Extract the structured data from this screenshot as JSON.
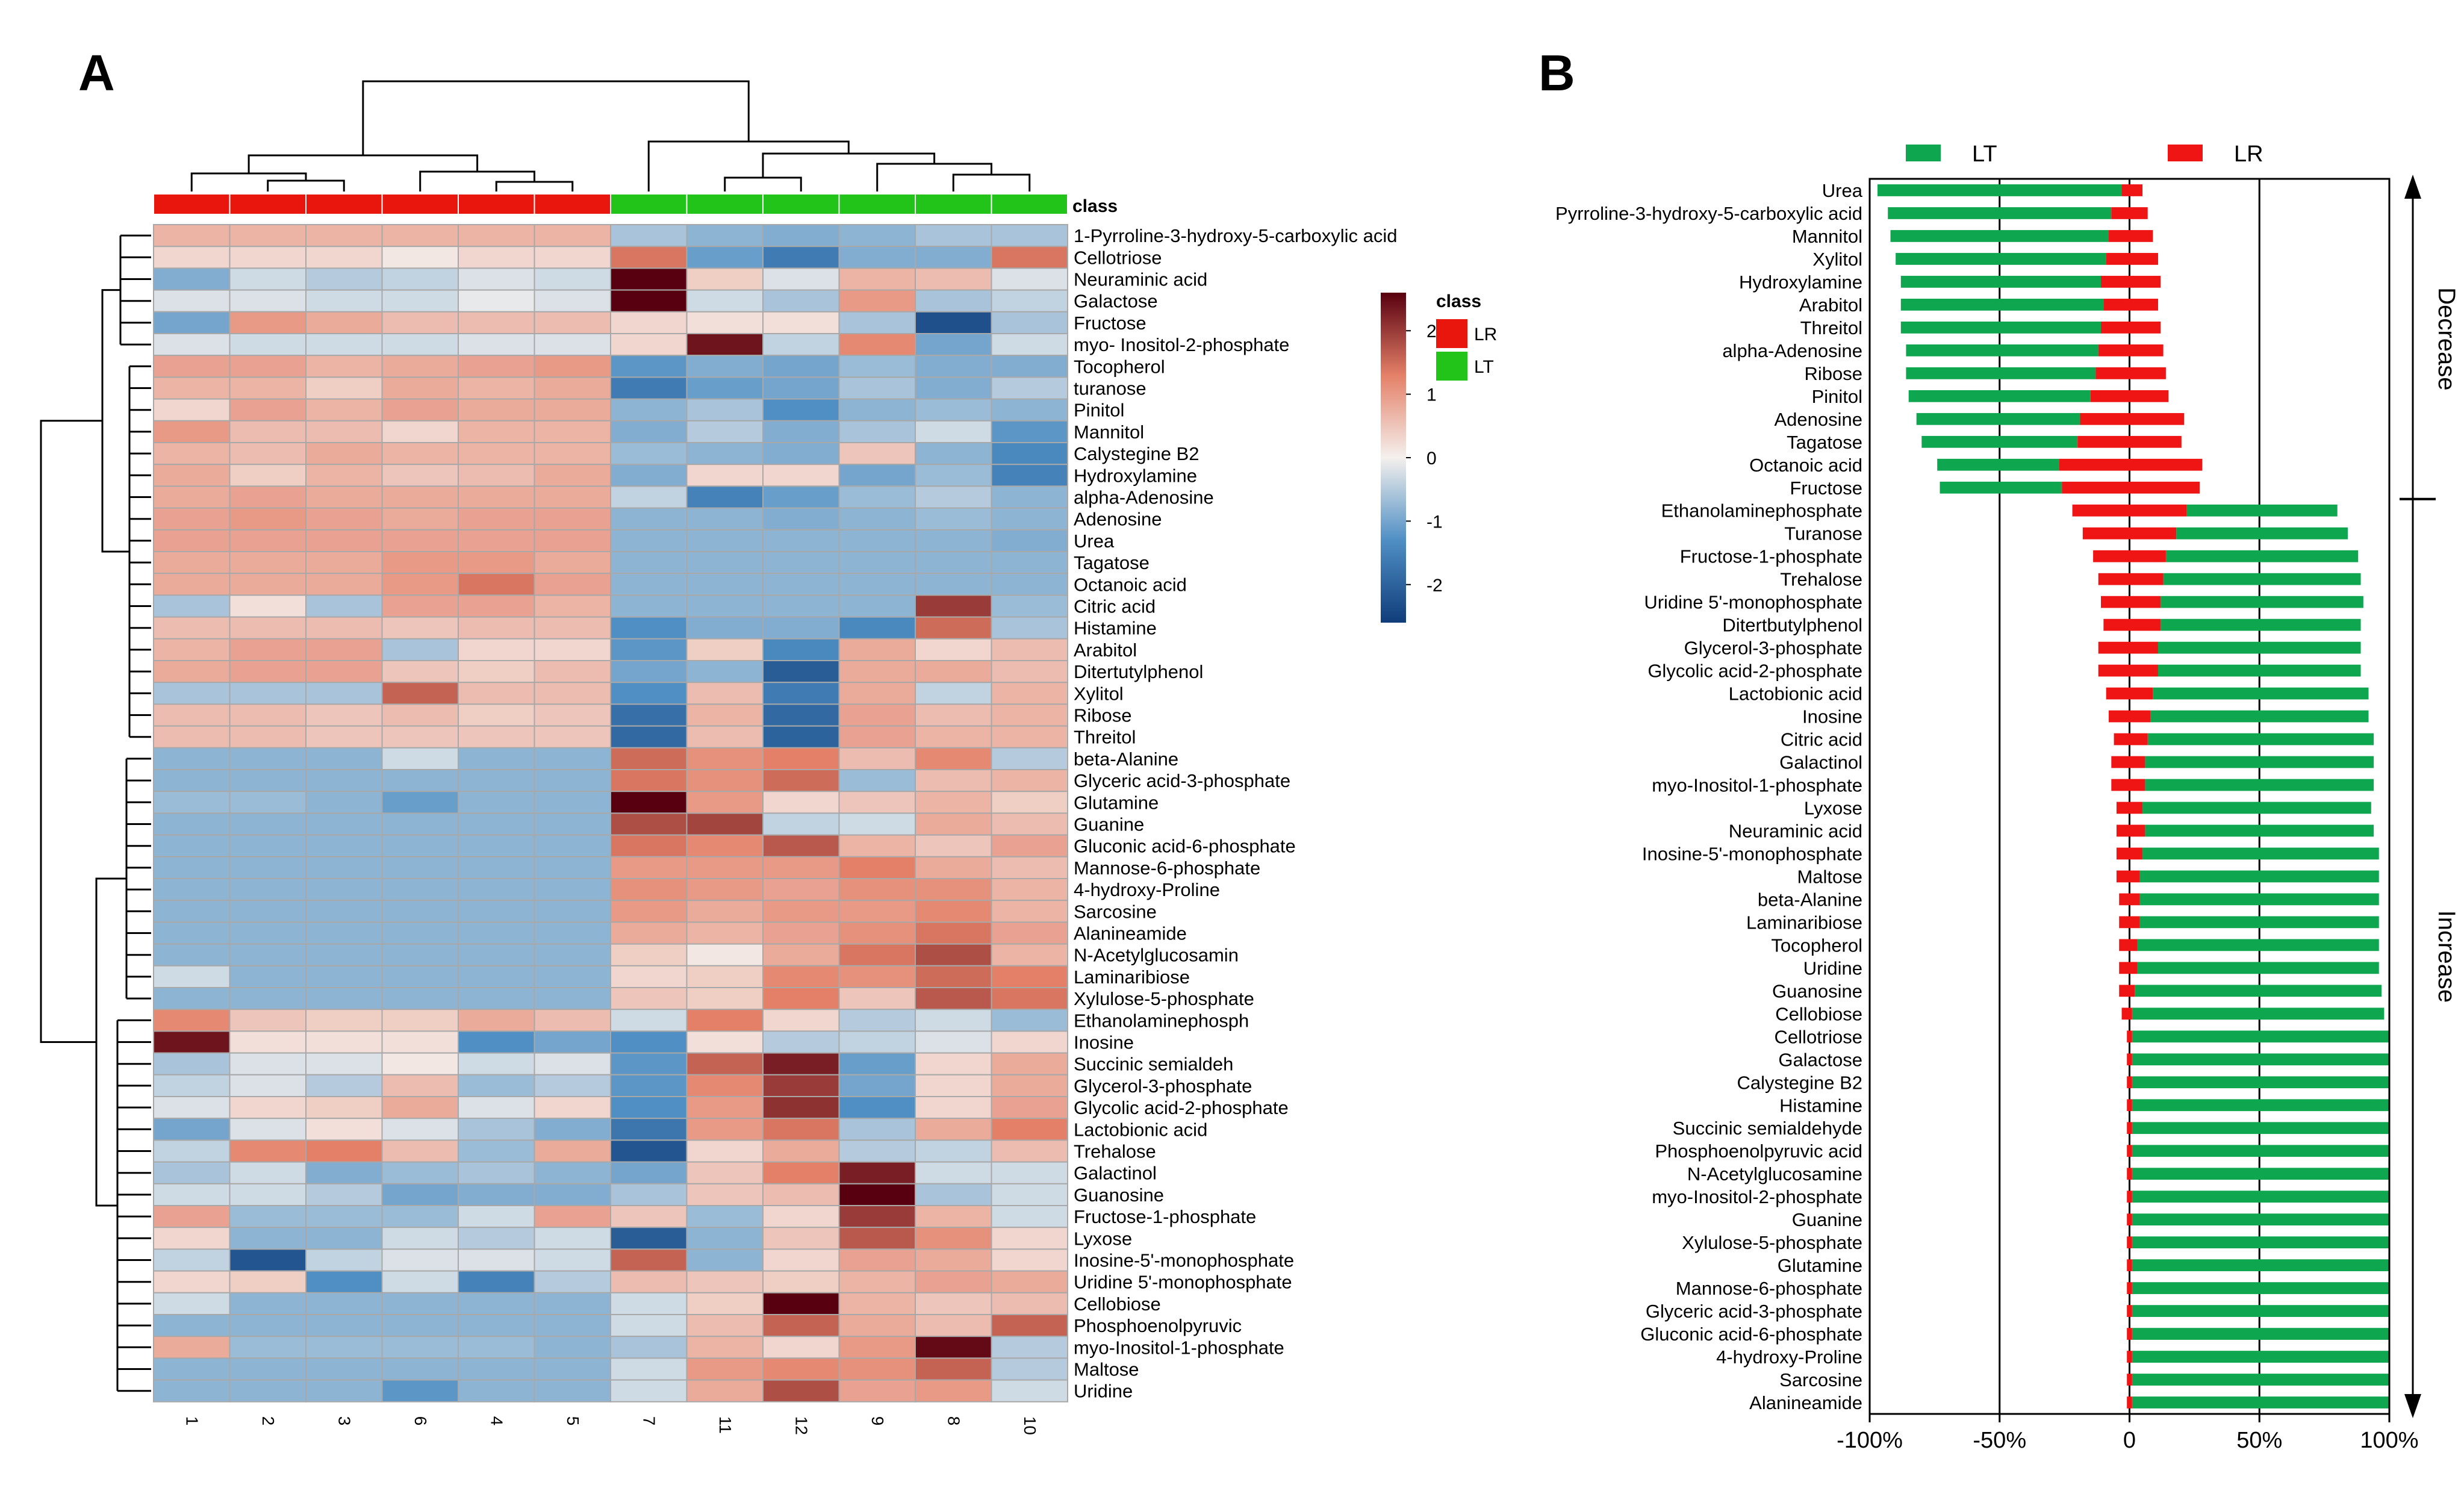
{
  "panels": {
    "a": "A",
    "b": "B"
  },
  "chart_data": [
    {
      "type": "heatmap",
      "panel": "A",
      "title": "",
      "class_label": "class",
      "samples": [
        "1",
        "2",
        "3",
        "6",
        "4",
        "5",
        "7",
        "11",
        "12",
        "9",
        "8",
        "10"
      ],
      "sample_class": [
        "LR",
        "LR",
        "LR",
        "LR",
        "LR",
        "LR",
        "LT",
        "LT",
        "LT",
        "LT",
        "LT",
        "LT"
      ],
      "legend": {
        "title": "class",
        "entries": [
          {
            "name": "LR",
            "color": "#e8160c"
          },
          {
            "name": "LT",
            "color": "#22c41a"
          }
        ]
      },
      "colorbar": {
        "ticks": [
          2,
          1,
          0,
          -1,
          -2
        ],
        "range": [
          -2.6,
          2.6
        ],
        "colors": [
          "#103d7a",
          "#4f8fc4",
          "#f4f0ed",
          "#e48068",
          "#58000f"
        ]
      },
      "metabolites": [
        "1-Pyrroline-3-hydroxy-5-carboxylic acid",
        "Cellotriose",
        "Neuraminic acid",
        "Galactose",
        "Fructose",
        "myo- Inositol-2-phosphate",
        "Tocopherol",
        "turanose",
        "Pinitol",
        "Mannitol",
        "Calystegine B2",
        "Hydroxylamine",
        "alpha-Adenosine",
        "Adenosine",
        "Urea",
        "Tagatose",
        "Octanoic acid",
        "Citric acid",
        "Histamine",
        "Arabitol",
        "Ditertutylphenol",
        "Xylitol",
        "Ribose",
        "Threitol",
        "beta-Alanine",
        "Glyceric acid-3-phosphate",
        "Glutamine",
        "Guanine",
        "Gluconic acid-6-phosphate",
        "Mannose-6-phosphate",
        "4-hydroxy-Proline",
        "Sarcosine",
        "Alanineamide",
        "N-Acetylglucosamin",
        "Laminaribiose",
        "Xylulose-5-phosphate",
        "Ethanolaminephosph",
        "Inosine",
        "Succinic semialdeh",
        "Glycerol-3-phosphate",
        "Glycolic acid-2-phosphate",
        "Lactobionic acid",
        "Trehalose",
        "Galactinol",
        "Guanosine",
        "Fructose-1-phosphate",
        "Lyxose",
        "Inosine-5'-monophosphate",
        "Uridine 5'-monophosphate",
        "Cellobiose",
        "Phosphoenolpyruvic",
        "myo-Inositol-1-phosphate",
        "Maltose",
        "Uridine"
      ],
      "values": [
        [
          0.7,
          0.7,
          0.7,
          0.7,
          0.7,
          0.7,
          -0.6,
          -0.8,
          -0.9,
          -0.8,
          -0.6,
          -0.6
        ],
        [
          0.3,
          0.3,
          0.3,
          0.1,
          0.3,
          0.3,
          1.4,
          -1.1,
          -1.6,
          -0.9,
          -0.9,
          1.4
        ],
        [
          -0.9,
          -0.3,
          -0.5,
          -0.4,
          -0.2,
          -0.3,
          2.6,
          0.4,
          -0.2,
          0.7,
          0.6,
          -0.2
        ],
        [
          -0.2,
          -0.2,
          -0.3,
          -0.3,
          -0.1,
          -0.2,
          2.7,
          -0.3,
          -0.6,
          1.0,
          -0.6,
          -0.4
        ],
        [
          -1.0,
          1.0,
          0.8,
          0.6,
          0.6,
          0.6,
          0.3,
          0.2,
          0.2,
          -0.6,
          -2.3,
          -0.6
        ],
        [
          -0.2,
          -0.3,
          -0.3,
          -0.3,
          -0.2,
          -0.2,
          0.3,
          2.4,
          -0.4,
          1.2,
          -1.0,
          -0.3
        ],
        [
          0.9,
          0.9,
          0.7,
          0.8,
          0.9,
          1.0,
          -1.2,
          -0.9,
          -1.0,
          -0.7,
          -0.9,
          -0.9
        ],
        [
          0.7,
          0.7,
          0.4,
          0.8,
          0.7,
          0.8,
          -1.6,
          -1.1,
          -1.0,
          -0.6,
          -0.9,
          -0.5
        ],
        [
          0.3,
          0.9,
          0.7,
          0.9,
          0.8,
          0.8,
          -0.8,
          -0.6,
          -1.3,
          -0.8,
          -0.7,
          -0.8
        ],
        [
          1.0,
          0.6,
          0.6,
          0.3,
          0.7,
          0.7,
          -0.9,
          -0.5,
          -0.9,
          -0.6,
          -0.3,
          -1.2
        ],
        [
          0.7,
          0.6,
          0.8,
          0.7,
          0.7,
          0.7,
          -0.7,
          -0.8,
          -0.9,
          0.5,
          -0.8,
          -1.4
        ],
        [
          0.8,
          0.4,
          0.7,
          0.5,
          0.6,
          0.8,
          -0.9,
          0.3,
          0.3,
          -1.0,
          -0.7,
          -1.5
        ],
        [
          0.8,
          0.9,
          0.8,
          0.8,
          0.8,
          0.8,
          -0.4,
          -1.5,
          -1.1,
          -0.7,
          -0.5,
          -0.8
        ],
        [
          0.9,
          1.0,
          0.9,
          0.8,
          0.9,
          0.9,
          -0.8,
          -0.8,
          -0.9,
          -0.8,
          -0.7,
          -0.8
        ],
        [
          0.9,
          0.9,
          0.9,
          0.9,
          0.9,
          0.9,
          -0.8,
          -0.8,
          -0.8,
          -0.8,
          -0.8,
          -0.9
        ],
        [
          0.8,
          0.8,
          0.8,
          1.0,
          1.0,
          0.8,
          -0.8,
          -0.8,
          -0.8,
          -0.8,
          -0.8,
          -0.8
        ],
        [
          0.8,
          0.8,
          0.8,
          1.0,
          1.4,
          0.9,
          -0.8,
          -0.8,
          -0.8,
          -0.8,
          -0.8,
          -0.8
        ],
        [
          -0.6,
          0.2,
          -0.6,
          0.9,
          0.9,
          0.7,
          -0.8,
          -0.8,
          -0.8,
          -0.8,
          2.0,
          -0.7
        ],
        [
          0.6,
          0.6,
          0.6,
          0.5,
          0.6,
          0.6,
          -1.3,
          -0.9,
          -0.9,
          -1.4,
          1.5,
          -0.6
        ],
        [
          0.7,
          0.9,
          0.9,
          -0.6,
          0.3,
          0.3,
          -1.2,
          0.4,
          -1.4,
          0.8,
          0.3,
          0.6
        ],
        [
          0.8,
          0.9,
          0.9,
          0.5,
          0.4,
          0.6,
          -1.0,
          -0.8,
          -2.1,
          0.8,
          0.8,
          0.6
        ],
        [
          -0.6,
          -0.6,
          -0.6,
          1.6,
          0.6,
          0.6,
          -1.3,
          0.6,
          -1.6,
          0.8,
          -0.4,
          0.7
        ],
        [
          0.6,
          0.6,
          0.5,
          0.6,
          0.4,
          0.5,
          -1.8,
          0.7,
          -1.9,
          0.9,
          0.6,
          0.7
        ],
        [
          0.6,
          0.6,
          0.5,
          0.5,
          0.5,
          0.5,
          -1.9,
          0.6,
          -2.0,
          0.9,
          0.7,
          0.7
        ],
        [
          -0.8,
          -0.8,
          -0.8,
          -0.3,
          -0.8,
          -0.8,
          1.5,
          1.1,
          1.3,
          0.6,
          1.2,
          -0.5
        ],
        [
          -0.8,
          -0.8,
          -0.8,
          -0.8,
          -0.8,
          -0.8,
          1.4,
          1.1,
          1.5,
          -0.7,
          0.6,
          0.7
        ],
        [
          -0.7,
          -0.7,
          -0.8,
          -1.1,
          -0.8,
          -0.8,
          2.6,
          1.0,
          0.3,
          0.5,
          0.7,
          0.4
        ],
        [
          -0.8,
          -0.8,
          -0.8,
          -0.8,
          -0.8,
          -0.8,
          1.8,
          1.9,
          -0.4,
          -0.3,
          0.8,
          0.6
        ],
        [
          -0.8,
          -0.8,
          -0.8,
          -0.8,
          -0.8,
          -0.8,
          1.4,
          1.2,
          1.7,
          0.7,
          0.5,
          0.9
        ],
        [
          -0.8,
          -0.8,
          -0.8,
          -0.8,
          -0.8,
          -0.8,
          1.0,
          1.0,
          1.0,
          1.3,
          0.8,
          0.6
        ],
        [
          -0.8,
          -0.8,
          -0.8,
          -0.8,
          -0.8,
          -0.8,
          1.1,
          1.0,
          0.9,
          1.1,
          1.1,
          0.7
        ],
        [
          -0.8,
          -0.8,
          -0.8,
          -0.8,
          -0.8,
          -0.8,
          1.0,
          0.8,
          1.0,
          1.0,
          1.2,
          0.7
        ],
        [
          -0.8,
          -0.8,
          -0.8,
          -0.8,
          -0.8,
          -0.8,
          0.8,
          0.7,
          0.9,
          1.1,
          1.4,
          0.9
        ],
        [
          -0.8,
          -0.8,
          -0.8,
          -0.8,
          -0.8,
          -0.8,
          0.4,
          0.1,
          0.8,
          1.4,
          1.8,
          0.7
        ],
        [
          -0.3,
          -0.8,
          -0.8,
          -0.8,
          -0.8,
          -0.8,
          0.3,
          0.4,
          1.2,
          1.1,
          1.5,
          1.3
        ],
        [
          -0.8,
          -0.8,
          -0.8,
          -0.8,
          -0.8,
          -0.8,
          0.5,
          0.4,
          1.3,
          0.5,
          1.7,
          1.4
        ],
        [
          1.2,
          0.5,
          0.4,
          0.4,
          0.8,
          0.6,
          -0.3,
          1.3,
          0.3,
          -0.5,
          -0.3,
          -0.7
        ],
        [
          2.4,
          0.2,
          0.2,
          0.2,
          -1.3,
          -1.0,
          -1.3,
          0.2,
          -0.5,
          -0.4,
          -0.2,
          0.3
        ],
        [
          -0.6,
          -0.2,
          -0.2,
          0.1,
          -0.3,
          -0.2,
          -1.2,
          1.6,
          2.3,
          -1.1,
          0.3,
          0.8
        ],
        [
          -0.4,
          -0.2,
          -0.5,
          0.6,
          -0.7,
          -0.5,
          -1.2,
          1.2,
          2.0,
          -1.0,
          0.3,
          0.8
        ],
        [
          -0.2,
          0.3,
          0.4,
          0.8,
          -0.2,
          0.3,
          -1.3,
          1.0,
          2.1,
          -1.3,
          0.3,
          0.9
        ],
        [
          -1.0,
          -0.2,
          0.2,
          -0.2,
          -0.6,
          -0.9,
          -1.7,
          1.0,
          1.4,
          -0.6,
          0.8,
          1.3
        ],
        [
          -0.4,
          1.2,
          1.3,
          0.6,
          -0.7,
          0.8,
          -2.2,
          0.3,
          0.8,
          -0.5,
          -0.4,
          0.6
        ],
        [
          -0.6,
          -0.3,
          -0.9,
          -0.7,
          -0.6,
          -0.8,
          -1.0,
          0.5,
          1.3,
          2.3,
          -0.3,
          -0.3
        ],
        [
          -0.3,
          -0.3,
          -0.5,
          -1.0,
          -0.9,
          -0.9,
          -0.6,
          0.5,
          0.6,
          2.6,
          -0.6,
          -0.3
        ],
        [
          0.9,
          -0.7,
          -0.7,
          -0.7,
          -0.3,
          0.9,
          0.5,
          -0.7,
          0.3,
          2.0,
          0.7,
          -0.3
        ],
        [
          0.3,
          -0.8,
          -0.8,
          -0.3,
          -0.5,
          -0.3,
          -2.1,
          -0.8,
          0.5,
          1.7,
          1.1,
          0.3
        ],
        [
          -0.4,
          -2.2,
          -0.4,
          -0.2,
          -0.2,
          -0.3,
          1.6,
          -0.8,
          0.3,
          0.9,
          0.8,
          0.3
        ],
        [
          0.3,
          0.4,
          -1.3,
          -0.3,
          -1.5,
          -0.5,
          0.6,
          0.5,
          0.4,
          0.7,
          0.9,
          0.8
        ],
        [
          -0.3,
          -0.8,
          -0.8,
          -0.8,
          -0.8,
          -0.8,
          -0.3,
          0.4,
          2.7,
          0.7,
          0.5,
          0.6
        ],
        [
          -0.8,
          -0.8,
          -0.8,
          -0.8,
          -0.8,
          -0.8,
          -0.3,
          0.6,
          1.6,
          0.8,
          0.6,
          1.6
        ],
        [
          0.8,
          -0.7,
          -0.7,
          -0.7,
          -0.7,
          -0.8,
          -0.6,
          0.7,
          0.3,
          1.0,
          2.5,
          -0.5
        ],
        [
          -0.8,
          -0.8,
          -0.8,
          -0.8,
          -0.8,
          -0.8,
          -0.3,
          1.0,
          1.2,
          1.1,
          1.6,
          -0.5
        ],
        [
          -0.8,
          -0.8,
          -0.8,
          -1.2,
          -0.8,
          -0.8,
          -0.3,
          0.8,
          1.8,
          0.9,
          1.0,
          -0.3
        ]
      ]
    },
    {
      "type": "bar",
      "orientation": "horizontal",
      "stacked": true,
      "panel": "B",
      "title": "",
      "xlabel": "",
      "ylabel": "",
      "xlim": [
        -100,
        100
      ],
      "xticks": [
        "-100%",
        "-50%",
        "0",
        "50%",
        "100%"
      ],
      "reference_lines": [
        -50,
        0,
        50
      ],
      "legend": [
        {
          "name": "LT",
          "color": "#0fa650"
        },
        {
          "name": "LR",
          "color": "#ef1515"
        }
      ],
      "group_labels": [
        {
          "label": "Decrease",
          "from": "Urea",
          "to": "Fructose"
        },
        {
          "label": "Increase",
          "from": "Ethanolaminephosphate",
          "to": "Alanineamide"
        }
      ],
      "categories": [
        "Urea",
        "Pyrroline-3-hydroxy-5-carboxylic acid",
        "Mannitol",
        "Xylitol",
        "Hydroxylamine",
        "Arabitol",
        "Threitol",
        "alpha-Adenosine",
        "Ribose",
        "Pinitol",
        "Adenosine",
        "Tagatose",
        "Octanoic acid",
        "Fructose",
        "Ethanolaminephosphate",
        "Turanose",
        "Fructose-1-phosphate",
        "Trehalose",
        "Uridine 5'-monophosphate",
        "Ditertbutylphenol",
        "Glycerol-3-phosphate",
        "Glycolic acid-2-phosphate",
        "Lactobionic acid",
        "Inosine",
        "Citric acid",
        "Galactinol",
        "myo-Inositol-1-phosphate",
        "Lyxose",
        "Neuraminic acid",
        "Inosine-5'-monophosphate",
        "Maltose",
        "beta-Alanine",
        "Laminaribiose",
        "Tocopherol",
        "Uridine",
        "Guanosine",
        "Cellobiose",
        "Cellotriose",
        "Galactose",
        "Calystegine B2",
        "Histamine",
        "Succinic semialdehyde",
        "Phosphoenolpyruvic acid",
        "N-Acetylglucosamine",
        "myo-Inositol-2-phosphate",
        "Guanine",
        "Xylulose-5-phosphate",
        "Glutamine",
        "Mannose-6-phosphate",
        "Glyceric acid-3-phosphate",
        "Gluconic acid-6-phosphate",
        "4-hydroxy-Proline",
        "Sarcosine",
        "Alanineamide"
      ],
      "series": [
        {
          "name": "LT",
          "start": [
            -97,
            -93,
            -92,
            -90,
            -88,
            -88,
            -88,
            -86,
            -86,
            -85,
            -82,
            -80,
            -74,
            -73,
            22,
            18,
            14,
            13,
            12,
            12,
            11,
            11,
            9,
            8,
            7,
            6,
            6,
            5,
            6,
            5,
            4,
            4,
            4,
            3,
            3,
            2,
            1,
            1,
            1,
            1,
            1,
            1,
            1,
            1,
            1,
            1,
            1,
            1,
            1,
            1,
            1,
            1,
            1,
            1
          ],
          "end": [
            -3,
            -7,
            -8,
            -9,
            -11,
            -10,
            -11,
            -12,
            -13,
            -15,
            -19,
            -20,
            -27,
            -26,
            80,
            84,
            88,
            89,
            90,
            89,
            89,
            89,
            92,
            92,
            94,
            94,
            94,
            93,
            94,
            96,
            96,
            96,
            96,
            96,
            96,
            97,
            98,
            100,
            100,
            100,
            100,
            100,
            100,
            100,
            100,
            100,
            100,
            100,
            100,
            100,
            100,
            100,
            100,
            100
          ]
        },
        {
          "name": "LR",
          "start": [
            -3,
            -7,
            -8,
            -9,
            -11,
            -10,
            -11,
            -12,
            -13,
            -15,
            -19,
            -20,
            -27,
            -26,
            -22,
            -18,
            -14,
            -12,
            -11,
            -10,
            -12,
            -12,
            -9,
            -8,
            -6,
            -7,
            -7,
            -5,
            -5,
            -5,
            -5,
            -4,
            -4,
            -4,
            -4,
            -4,
            -3,
            -1,
            -1,
            -1,
            -1,
            -1,
            -1,
            -1,
            -1,
            -1,
            -1,
            -1,
            -1,
            -1,
            -1,
            -1,
            -1,
            -1
          ],
          "end": [
            5,
            7,
            9,
            11,
            12,
            11,
            12,
            13,
            14,
            15,
            21,
            20,
            28,
            27,
            22,
            18,
            14,
            13,
            12,
            12,
            11,
            11,
            9,
            8,
            7,
            6,
            6,
            5,
            6,
            5,
            4,
            4,
            4,
            3,
            3,
            2,
            1,
            1,
            1,
            1,
            1,
            1,
            1,
            1,
            1,
            1,
            1,
            1,
            1,
            1,
            1,
            1,
            1,
            1
          ]
        }
      ]
    }
  ]
}
